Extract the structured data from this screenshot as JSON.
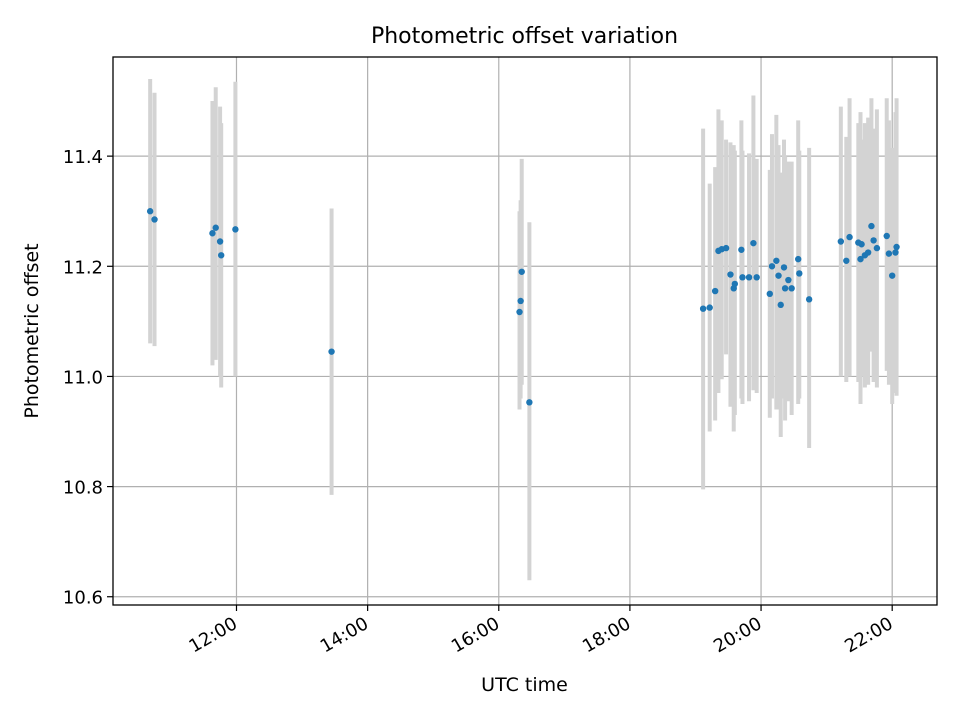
{
  "chart_data": {
    "type": "scatter",
    "title": "Photometric offset variation",
    "xlabel": "UTC time",
    "ylabel": "Photometric offset",
    "x_axis_kind": "time of day (hours, UTC)",
    "xlim": [
      "10:07",
      "22:41"
    ],
    "ylim": [
      10.585,
      11.58
    ],
    "x_ticks": [
      "12:00",
      "14:00",
      "16:00",
      "18:00",
      "20:00",
      "22:00"
    ],
    "y_ticks": [
      "10.6",
      "10.8",
      "11.0",
      "11.2",
      "11.4"
    ],
    "grid": true,
    "legend": "none",
    "colors": {
      "points": "#1f77b4",
      "error_bars": "#d3d3d3",
      "grid": "#b0b0b0"
    },
    "points": [
      {
        "time": "10:41",
        "y": 11.3,
        "err_low": 11.06,
        "err_high": 11.54
      },
      {
        "time": "10:45",
        "y": 11.285,
        "err_low": 11.055,
        "err_high": 11.515
      },
      {
        "time": "11:38",
        "y": 11.26,
        "err_low": 11.02,
        "err_high": 11.5
      },
      {
        "time": "11:41",
        "y": 11.27,
        "err_low": 11.03,
        "err_high": 11.525
      },
      {
        "time": "11:45",
        "y": 11.245,
        "err_low": 11.0,
        "err_high": 11.49
      },
      {
        "time": "11:46",
        "y": 11.22,
        "err_low": 10.98,
        "err_high": 11.46
      },
      {
        "time": "11:59",
        "y": 11.267,
        "err_low": 11.0,
        "err_high": 11.535
      },
      {
        "time": "13:27",
        "y": 11.045,
        "err_low": 10.785,
        "err_high": 11.305
      },
      {
        "time": "16:19",
        "y": 11.117,
        "err_low": 10.94,
        "err_high": 11.3
      },
      {
        "time": "16:20",
        "y": 11.137,
        "err_low": 10.96,
        "err_high": 11.32
      },
      {
        "time": "16:21",
        "y": 11.19,
        "err_low": 10.985,
        "err_high": 11.395
      },
      {
        "time": "16:28",
        "y": 10.953,
        "err_low": 10.63,
        "err_high": 11.28
      },
      {
        "time": "19:07",
        "y": 11.123,
        "err_low": 10.795,
        "err_high": 11.45
      },
      {
        "time": "19:13",
        "y": 11.125,
        "err_low": 10.9,
        "err_high": 11.35
      },
      {
        "time": "19:18",
        "y": 11.155,
        "err_low": 10.92,
        "err_high": 11.38
      },
      {
        "time": "19:21",
        "y": 11.228,
        "err_low": 10.97,
        "err_high": 11.485
      },
      {
        "time": "19:24",
        "y": 11.231,
        "err_low": 10.995,
        "err_high": 11.465
      },
      {
        "time": "19:28",
        "y": 11.233,
        "err_low": 11.04,
        "err_high": 11.43
      },
      {
        "time": "19:32",
        "y": 11.185,
        "err_low": 10.945,
        "err_high": 11.425
      },
      {
        "time": "19:35",
        "y": 11.16,
        "err_low": 10.9,
        "err_high": 11.42
      },
      {
        "time": "19:36",
        "y": 11.168,
        "err_low": 10.93,
        "err_high": 11.41
      },
      {
        "time": "19:42",
        "y": 11.23,
        "err_low": 10.96,
        "err_high": 11.465
      },
      {
        "time": "19:43",
        "y": 11.18,
        "err_low": 10.95,
        "err_high": 11.41
      },
      {
        "time": "19:49",
        "y": 11.18,
        "err_low": 10.955,
        "err_high": 11.405
      },
      {
        "time": "19:53",
        "y": 11.242,
        "err_low": 10.975,
        "err_high": 11.51
      },
      {
        "time": "19:56",
        "y": 11.18,
        "err_low": 10.97,
        "err_high": 11.395
      },
      {
        "time": "20:08",
        "y": 11.15,
        "err_low": 10.925,
        "err_high": 11.375
      },
      {
        "time": "20:10",
        "y": 11.2,
        "err_low": 10.96,
        "err_high": 11.44
      },
      {
        "time": "20:14",
        "y": 11.21,
        "err_low": 10.94,
        "err_high": 11.475
      },
      {
        "time": "20:16",
        "y": 11.183,
        "err_low": 10.94,
        "err_high": 11.42
      },
      {
        "time": "20:18",
        "y": 11.13,
        "err_low": 10.89,
        "err_high": 11.37
      },
      {
        "time": "20:21",
        "y": 11.198,
        "err_low": 10.96,
        "err_high": 11.43
      },
      {
        "time": "20:22",
        "y": 11.16,
        "err_low": 10.92,
        "err_high": 11.4
      },
      {
        "time": "20:25",
        "y": 11.175,
        "err_low": 10.955,
        "err_high": 11.39
      },
      {
        "time": "20:28",
        "y": 11.16,
        "err_low": 10.93,
        "err_high": 11.39
      },
      {
        "time": "20:34",
        "y": 11.213,
        "err_low": 10.95,
        "err_high": 11.465
      },
      {
        "time": "20:35",
        "y": 11.187,
        "err_low": 10.96,
        "err_high": 11.41
      },
      {
        "time": "20:44",
        "y": 11.14,
        "err_low": 10.87,
        "err_high": 11.415
      },
      {
        "time": "21:13",
        "y": 11.245,
        "err_low": 11.0,
        "err_high": 11.49
      },
      {
        "time": "21:18",
        "y": 11.21,
        "err_low": 10.99,
        "err_high": 11.435
      },
      {
        "time": "21:21",
        "y": 11.253,
        "err_low": 11.0,
        "err_high": 11.505
      },
      {
        "time": "21:29",
        "y": 11.243,
        "err_low": 10.99,
        "err_high": 11.46
      },
      {
        "time": "21:31",
        "y": 11.213,
        "err_low": 10.95,
        "err_high": 11.48
      },
      {
        "time": "21:32",
        "y": 11.24,
        "err_low": 11.0,
        "err_high": 11.43
      },
      {
        "time": "21:35",
        "y": 11.22,
        "err_low": 10.98,
        "err_high": 11.46
      },
      {
        "time": "21:38",
        "y": 11.225,
        "err_low": 10.985,
        "err_high": 11.47
      },
      {
        "time": "21:41",
        "y": 11.273,
        "err_low": 11.045,
        "err_high": 11.505
      },
      {
        "time": "21:43",
        "y": 11.247,
        "err_low": 10.99,
        "err_high": 11.45
      },
      {
        "time": "21:46",
        "y": 11.233,
        "err_low": 10.98,
        "err_high": 11.485
      },
      {
        "time": "21:55",
        "y": 11.255,
        "err_low": 11.01,
        "err_high": 11.505
      },
      {
        "time": "21:57",
        "y": 11.223,
        "err_low": 10.985,
        "err_high": 11.465
      },
      {
        "time": "22:00",
        "y": 11.183,
        "err_low": 10.95,
        "err_high": 11.415
      },
      {
        "time": "22:03",
        "y": 11.225,
        "err_low": 10.97,
        "err_high": 11.48
      },
      {
        "time": "22:04",
        "y": 11.235,
        "err_low": 10.965,
        "err_high": 11.505
      }
    ]
  }
}
